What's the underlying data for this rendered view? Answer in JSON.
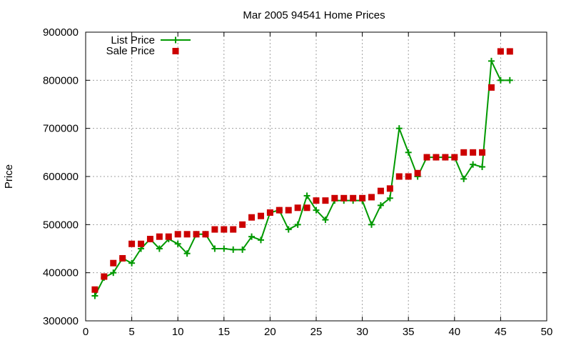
{
  "chart_data": {
    "type": "line",
    "title": "Mar 2005 94541 Home Prices",
    "xlabel": "",
    "ylabel": "Price",
    "xlim": [
      0,
      50
    ],
    "ylim": [
      300000,
      900000
    ],
    "x_ticks": [
      0,
      5,
      10,
      15,
      20,
      25,
      30,
      35,
      40,
      45,
      50
    ],
    "y_ticks": [
      300000,
      400000,
      500000,
      600000,
      700000,
      800000,
      900000
    ],
    "grid": true,
    "legend_position": "top-left",
    "series": [
      {
        "name": "List Price",
        "style": "lines+points",
        "marker": "plus",
        "color": "#009900",
        "x": [
          1,
          2,
          3,
          4,
          5,
          6,
          7,
          8,
          9,
          10,
          11,
          12,
          13,
          14,
          15,
          16,
          17,
          18,
          19,
          20,
          21,
          22,
          23,
          24,
          25,
          26,
          27,
          28,
          29,
          30,
          31,
          32,
          33,
          34,
          35,
          36,
          37,
          38,
          39,
          40,
          41,
          42,
          43,
          44,
          45,
          46
        ],
        "y": [
          352000,
          390000,
          400000,
          430000,
          420000,
          450000,
          470000,
          450000,
          470000,
          460000,
          440000,
          480000,
          480000,
          450000,
          450000,
          448000,
          448000,
          475000,
          468000,
          525000,
          530000,
          490000,
          500000,
          560000,
          530000,
          510000,
          550000,
          550000,
          550000,
          550000,
          500000,
          540000,
          555000,
          700000,
          650000,
          600000,
          640000,
          640000,
          640000,
          640000,
          595000,
          625000,
          620000,
          840000,
          800000,
          800000
        ]
      },
      {
        "name": "Sale Price",
        "style": "points",
        "marker": "square",
        "color": "#cc0000",
        "x": [
          1,
          2,
          3,
          4,
          5,
          6,
          7,
          8,
          9,
          10,
          11,
          12,
          13,
          14,
          15,
          16,
          17,
          18,
          19,
          20,
          21,
          22,
          23,
          24,
          25,
          26,
          27,
          28,
          29,
          30,
          31,
          32,
          33,
          34,
          35,
          36,
          37,
          38,
          39,
          40,
          41,
          42,
          43,
          44,
          45,
          46
        ],
        "y": [
          365000,
          392000,
          420000,
          430000,
          460000,
          460000,
          470000,
          475000,
          475000,
          480000,
          480000,
          480000,
          480000,
          490000,
          490000,
          490000,
          500000,
          515000,
          518000,
          525000,
          530000,
          530000,
          535000,
          535000,
          550000,
          550000,
          555000,
          555000,
          555000,
          555000,
          557000,
          570000,
          575000,
          600000,
          600000,
          607000,
          640000,
          640000,
          640000,
          640000,
          650000,
          650000,
          650000,
          785000,
          860000,
          860000
        ]
      }
    ]
  }
}
